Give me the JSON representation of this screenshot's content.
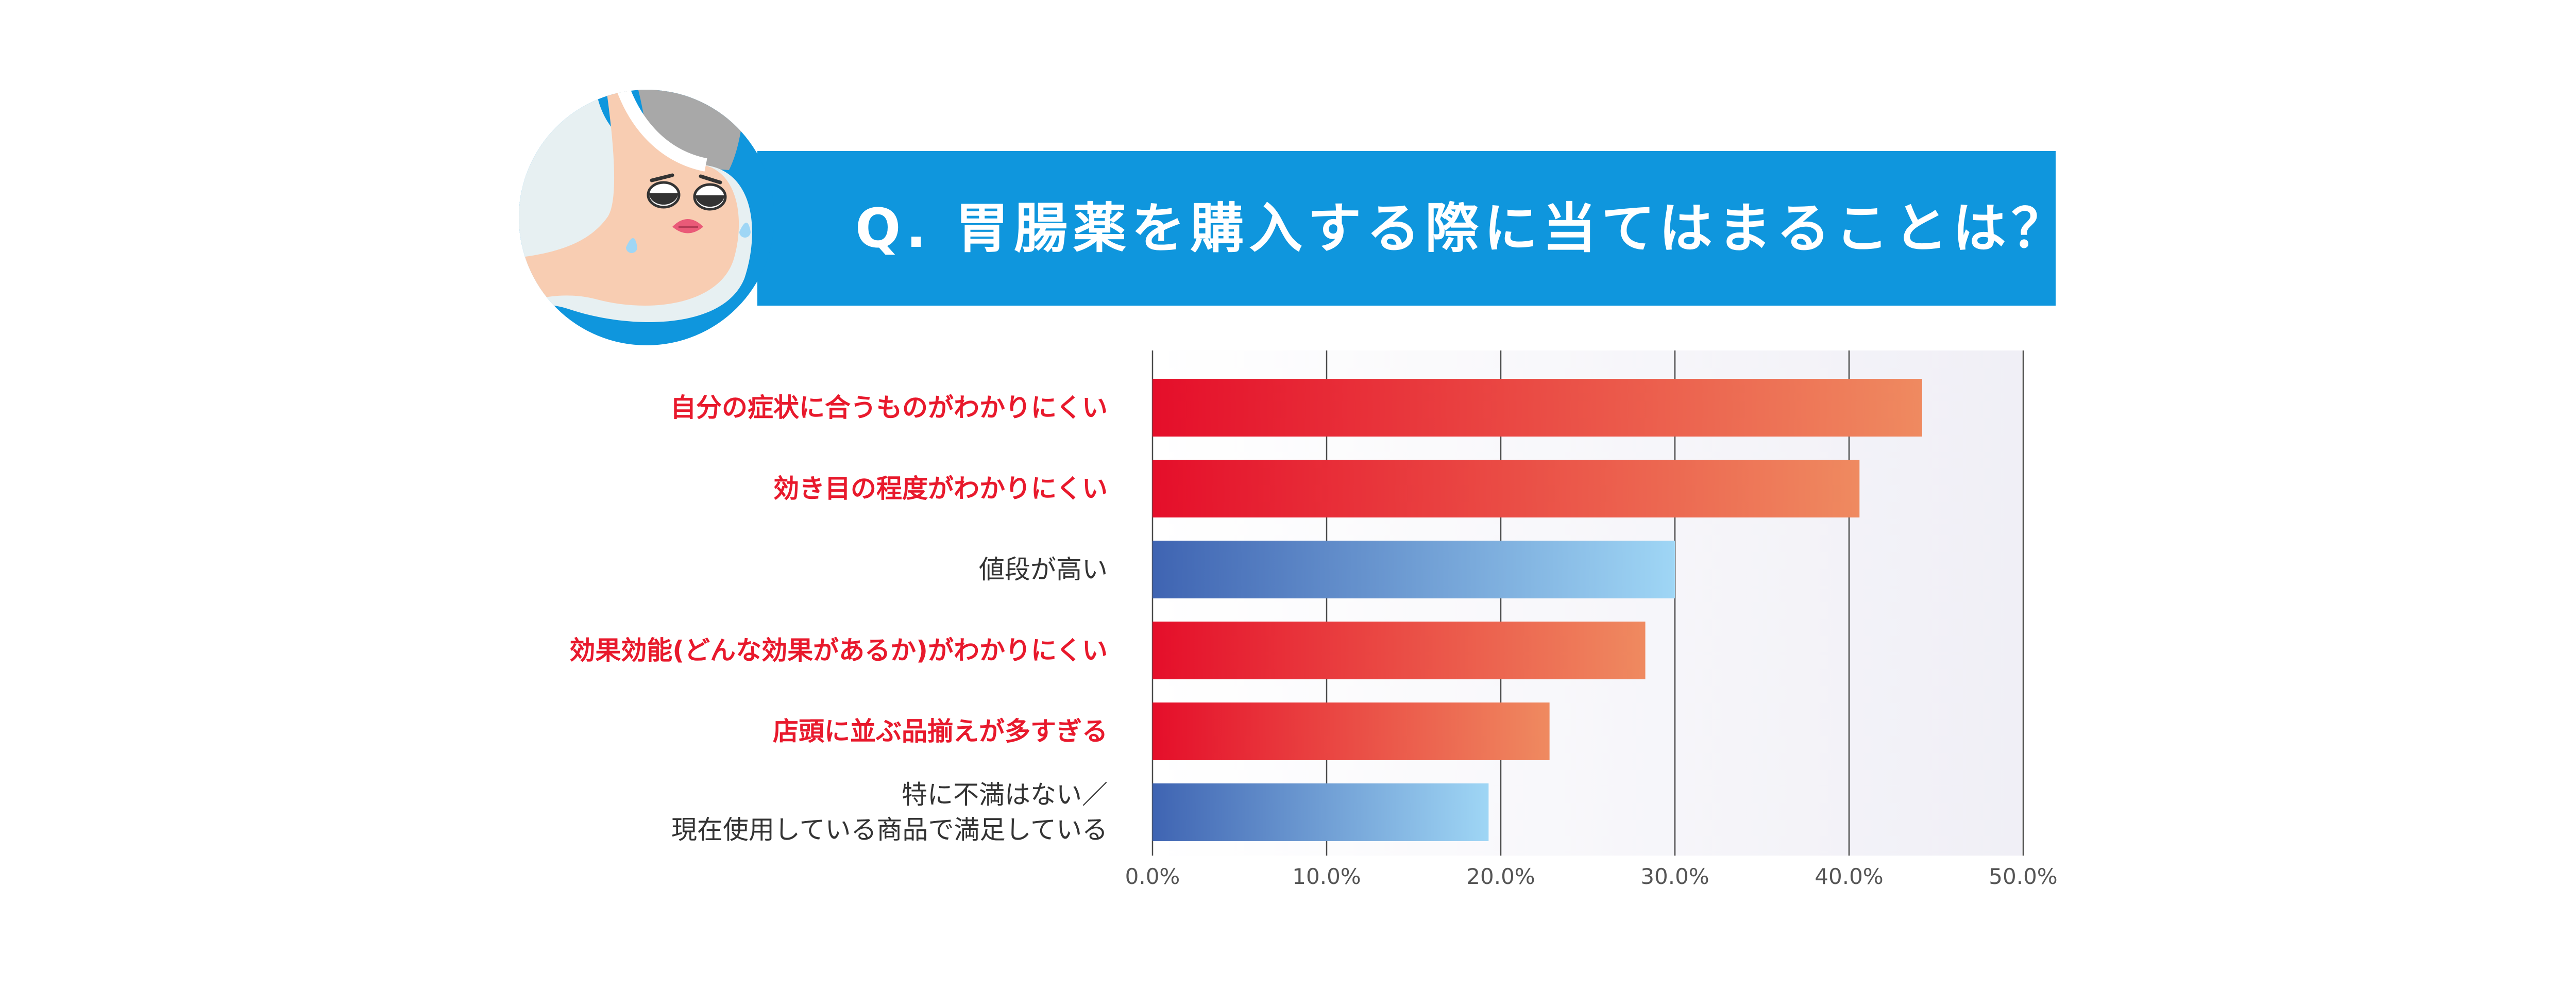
{
  "header": {
    "title": "Q. 胃腸薬を購入する際に当てはまることは？",
    "band_color": "#0f96dd"
  },
  "mascot": {
    "icon": "sad-stomach-mascot-icon"
  },
  "chart_data": {
    "type": "bar",
    "orientation": "horizontal",
    "title": "Q. 胃腸薬を購入する際に当てはまることは？",
    "xlabel": "",
    "ylabel": "",
    "xlim": [
      0,
      50
    ],
    "grid": true,
    "legend": "none",
    "tick_labels": [
      "0.0%",
      "10.0%",
      "20.0%",
      "30.0%",
      "40.0%",
      "50.0%"
    ],
    "tick_values": [
      0,
      10,
      20,
      30,
      40,
      50
    ],
    "categories": [
      {
        "label": "自分の症状に合うものがわかりにくい",
        "value": 44.2,
        "highlight": true
      },
      {
        "label": "効き目の程度がわかりにくい",
        "value": 40.6,
        "highlight": true
      },
      {
        "label": "値段が高い",
        "value": 30.0,
        "highlight": false
      },
      {
        "label": "効果効能(どんな効果があるか)がわかりにくい",
        "value": 28.3,
        "highlight": true
      },
      {
        "label": "店頭に並ぶ品揃えが多すぎる",
        "value": 22.8,
        "highlight": true
      },
      {
        "label": "特に不満はない／現在使用している商品で満足している",
        "label_lines": [
          "特に不満はない／",
          "現在使用している商品で満足している"
        ],
        "value": 19.3,
        "highlight": false
      }
    ],
    "colors": {
      "highlight_start": "#e50e2a",
      "highlight_end": "#ef8a60",
      "highlight_text": "#e8192c",
      "plain_start": "#3f64b2",
      "plain_end": "#9fd6f5",
      "plain_text": "#333333"
    }
  }
}
